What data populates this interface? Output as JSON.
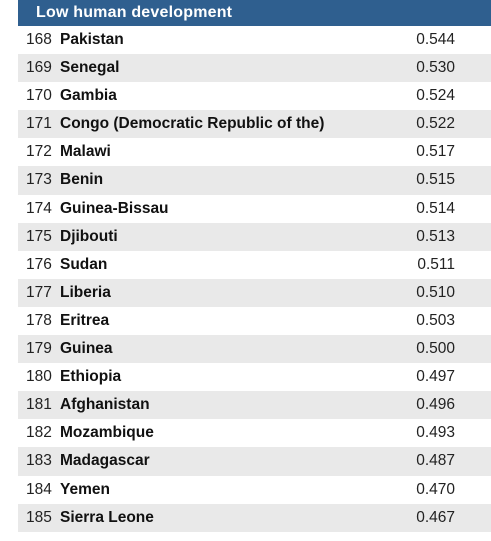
{
  "table": {
    "header": "Low human development",
    "header_color": "#2f5f8f",
    "rows": [
      {
        "rank": "168",
        "country": "Pakistan",
        "value": "0.544"
      },
      {
        "rank": "169",
        "country": "Senegal",
        "value": "0.530"
      },
      {
        "rank": "170",
        "country": "Gambia",
        "value": "0.524"
      },
      {
        "rank": "171",
        "country": "Congo (Democratic Republic of the)",
        "value": "0.522"
      },
      {
        "rank": "172",
        "country": "Malawi",
        "value": "0.517"
      },
      {
        "rank": "173",
        "country": "Benin",
        "value": "0.515"
      },
      {
        "rank": "174",
        "country": "Guinea-Bissau",
        "value": "0.514"
      },
      {
        "rank": "175",
        "country": "Djibouti",
        "value": "0.513"
      },
      {
        "rank": "176",
        "country": "Sudan",
        "value": "0.511"
      },
      {
        "rank": "177",
        "country": "Liberia",
        "value": "0.510"
      },
      {
        "rank": "178",
        "country": "Eritrea",
        "value": "0.503"
      },
      {
        "rank": "179",
        "country": "Guinea",
        "value": "0.500"
      },
      {
        "rank": "180",
        "country": "Ethiopia",
        "value": "0.497"
      },
      {
        "rank": "181",
        "country": "Afghanistan",
        "value": "0.496"
      },
      {
        "rank": "182",
        "country": "Mozambique",
        "value": "0.493"
      },
      {
        "rank": "183",
        "country": "Madagascar",
        "value": "0.487"
      },
      {
        "rank": "184",
        "country": "Yemen",
        "value": "0.470"
      },
      {
        "rank": "185",
        "country": "Sierra Leone",
        "value": "0.467"
      }
    ]
  }
}
